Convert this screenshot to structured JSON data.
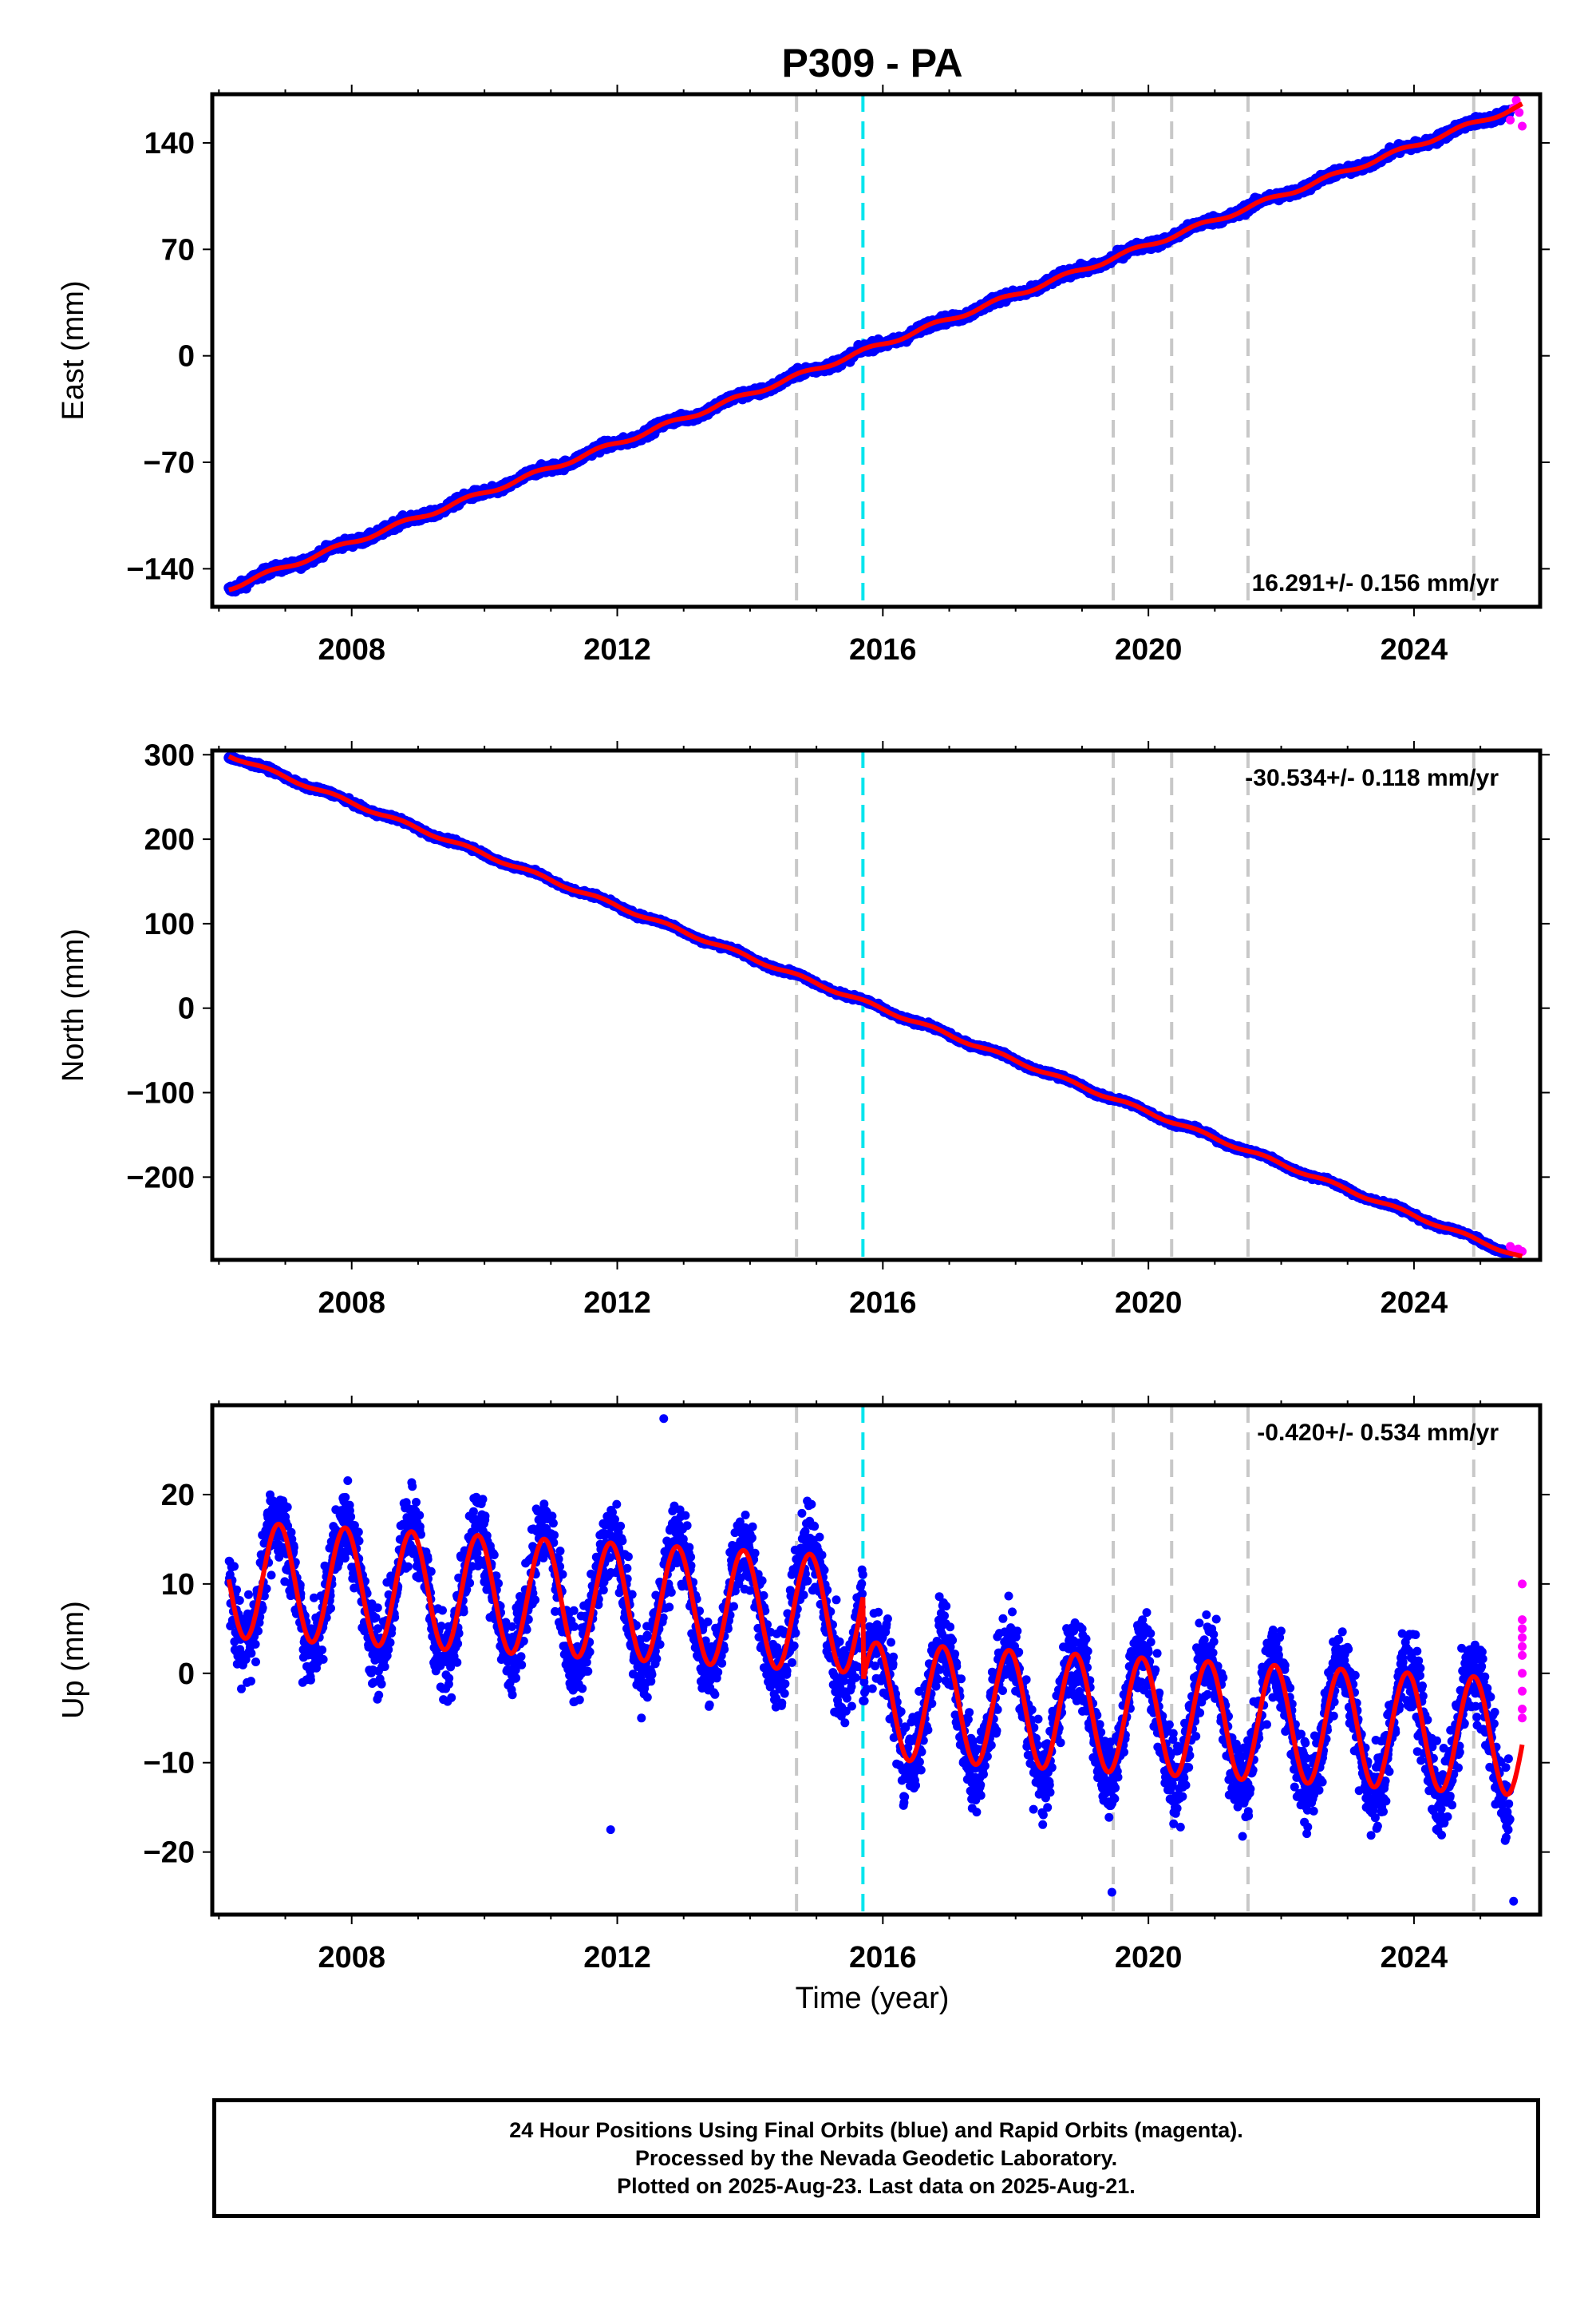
{
  "title": "P309 - PA",
  "xlabel": "Time (year)",
  "colors": {
    "final_orbits": "#0000ff",
    "rapid_orbits": "#ff00ff",
    "model": "#ff0000",
    "event_line": "#c8c8c8",
    "equipment_line": "#00e5ee"
  },
  "caption": {
    "line1": "24 Hour Positions Using Final Orbits (blue) and Rapid Orbits (magenta).",
    "line2": "Processed by the Nevada Geodetic Laboratory.",
    "line3": "Plotted on 2025-Aug-23. Last data on 2025-Aug-21."
  },
  "chart_data": [
    {
      "type": "scatter",
      "ylabel": "East (mm)",
      "rate_label": "16.291+/- 0.156 mm/yr",
      "rate_position": "bottom-right",
      "xlim": [
        2005.9,
        2025.9
      ],
      "ylim": [
        -165,
        172
      ],
      "xticks": [
        2008,
        2012,
        2016,
        2020,
        2024
      ],
      "yticks": [
        140,
        70,
        0,
        -70,
        -140
      ],
      "ytick_labels": [
        "140",
        "70",
        "0",
        "−70",
        "−140"
      ],
      "fit": {
        "slope": 16.291,
        "ref_year": 2015.4,
        "ref_value": -2,
        "annual_amplitude": 1.5,
        "annual_phase_year": 2006.5
      },
      "data_span": [
        2006.15,
        2025.63
      ],
      "rapid_span": [
        2025.45,
        2025.63
      ],
      "rapid_values": [
        155,
        163,
        168,
        160,
        151
      ],
      "gray_events": [
        2014.7,
        2019.47,
        2020.35,
        2021.5,
        2024.9
      ],
      "cyan_events": [
        2015.7
      ],
      "noise": 2.0
    },
    {
      "type": "scatter",
      "ylabel": "North (mm)",
      "rate_label": "-30.534+/- 0.118 mm/yr",
      "rate_position": "top-right",
      "xlim": [
        2005.9,
        2025.9
      ],
      "ylim": [
        -298,
        305
      ],
      "xticks": [
        2008,
        2012,
        2016,
        2020,
        2024
      ],
      "yticks": [
        300,
        200,
        100,
        0,
        -100,
        -200
      ],
      "ytick_labels": [
        "300",
        "200",
        "100",
        "0",
        "−100",
        "−200"
      ],
      "fit": {
        "slope": -30.534,
        "ref_year": 2015.7,
        "ref_value": 8,
        "annual_amplitude": 2.0,
        "annual_phase_year": 2006.5
      },
      "data_span": [
        2006.15,
        2025.63
      ],
      "rapid_span": [
        2025.45,
        2025.63
      ],
      "rapid_values": [
        -282,
        -286,
        -285,
        -288
      ],
      "gray_events": [
        2014.7,
        2019.47,
        2020.35,
        2021.5,
        2024.9
      ],
      "cyan_events": [
        2015.7
      ],
      "noise": 1.8
    },
    {
      "type": "scatter",
      "ylabel": "Up (mm)",
      "rate_label": "-0.420+/- 0.534 mm/yr",
      "rate_position": "top-right",
      "xlim": [
        2005.9,
        2025.9
      ],
      "ylim": [
        -27,
        30
      ],
      "xticks": [
        2008,
        2012,
        2016,
        2020,
        2024
      ],
      "yticks": [
        20,
        10,
        0,
        -10,
        -20
      ],
      "ytick_labels": [
        "20",
        "10",
        "0",
        "−10",
        "−20"
      ],
      "fit": {
        "slope": -0.42,
        "ref_year": 2015.7,
        "ref_value": 6.5,
        "offset_at_cyan": -9.5,
        "annual_amplitude": 6.5,
        "annual_phase_year": 2006.65
      },
      "data_span": [
        2006.15,
        2025.63
      ],
      "rapid_span": [
        2025.45,
        2025.63
      ],
      "rapid_values": [
        10,
        6,
        3,
        5,
        0,
        -2,
        -4,
        2,
        4,
        -5
      ],
      "gray_events": [
        2014.7,
        2019.47,
        2020.35,
        2021.5,
        2024.9
      ],
      "cyan_events": [
        2015.7
      ],
      "noise": 3.0,
      "outliers": [
        [
          2012.7,
          28.5
        ],
        [
          2011.9,
          -17.5
        ],
        [
          2025.5,
          -25.5
        ],
        [
          2019.45,
          -24.5
        ]
      ]
    }
  ]
}
